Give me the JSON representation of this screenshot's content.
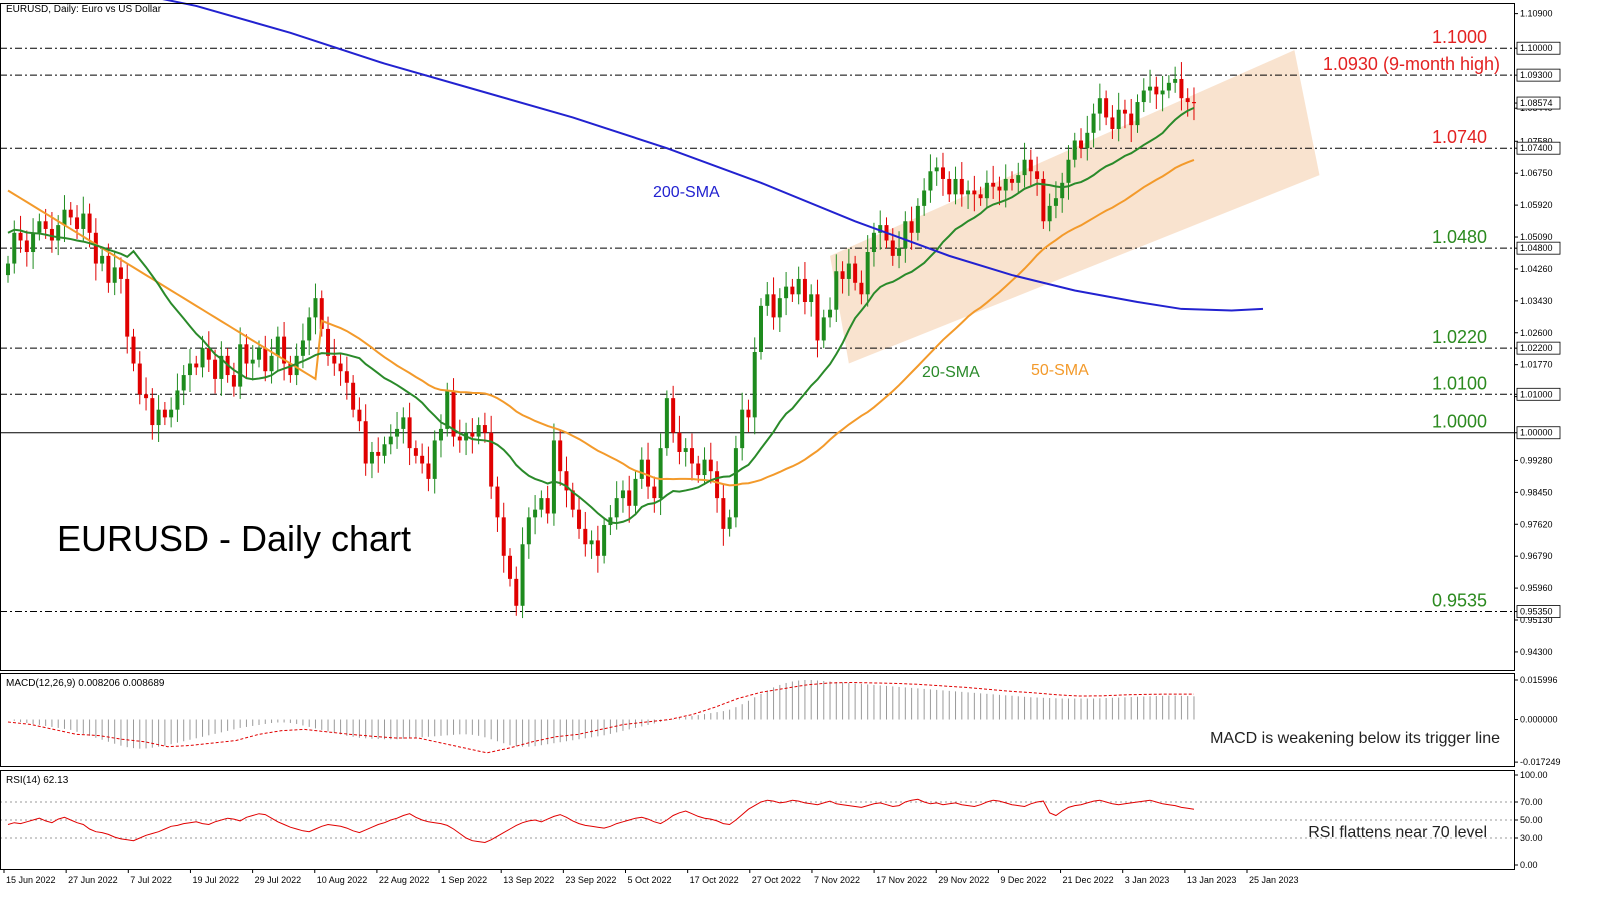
{
  "header": {
    "main_label": "EURUSD, Daily:  Euro vs US Dollar",
    "macd_label": "MACD(12,26,9) 0.008206 0.008689",
    "rsi_label": "RSI(14) 62.13"
  },
  "annotations": {
    "title": "EURUSD - Daily chart",
    "macd_note": "MACD is weakening below its trigger line",
    "rsi_note": "RSI flattens near 70 level",
    "sma200_label": "200-SMA",
    "sma20_label": "20-SMA",
    "sma50_label": "50-SMA"
  },
  "colors": {
    "up_candle": "#1e8b1e",
    "down_candle": "#e00000",
    "sma200": "#2222d0",
    "sma20": "#2a8a2a",
    "sma50": "#f39a2b",
    "channel": "#f7d9bf",
    "level_red": "#e32222",
    "level_green": "#2b8a1f"
  },
  "chart_data": {
    "type": "candlestick",
    "y_range": [
      0.9383,
      1.1115
    ],
    "levels": [
      {
        "value": 1.1,
        "label": "1.1000",
        "color": "red"
      },
      {
        "value": 1.093,
        "label": "1.0930 (9-month high)",
        "color": "red"
      },
      {
        "value": 1.074,
        "label": "1.0740",
        "color": "red"
      },
      {
        "value": 1.048,
        "label": "1.0480",
        "color": "green"
      },
      {
        "value": 1.022,
        "label": "1.0220",
        "color": "green"
      },
      {
        "value": 1.01,
        "label": "1.0100",
        "color": "green"
      },
      {
        "value": 1.0,
        "label": "1.0000",
        "color": "green"
      },
      {
        "value": 0.9535,
        "label": "0.9535",
        "color": "green"
      }
    ],
    "price_ticks": [
      "1.10900",
      "1.10000",
      "1.09300",
      "1.08574",
      "1.08440",
      "1.07580",
      "1.07400",
      "1.06750",
      "1.05920",
      "1.05090",
      "1.04800",
      "1.04260",
      "1.03430",
      "1.02600",
      "1.02200",
      "1.01770",
      "1.01000",
      "1.00940",
      "1.00000",
      "0.99280",
      "0.98450",
      "0.97620",
      "0.96790",
      "0.95960",
      "0.95350",
      "0.95130",
      "0.94300"
    ],
    "price_tags": [
      "1.10000",
      "1.09300",
      "1.08574",
      "1.07400",
      "1.04800",
      "1.02200",
      "1.01000",
      "1.00000",
      "0.95350"
    ],
    "current_price": 1.08574,
    "macd_ticks": [
      "0.015996",
      "0.000000",
      "-0.017249"
    ],
    "rsi_ticks": [
      "100.00",
      "70.00",
      "50.00",
      "30.00",
      "0.00"
    ],
    "x_labels": [
      "15 Jun 2022",
      "27 Jun 2022",
      "7 Jul 2022",
      "19 Jul 2022",
      "29 Jul 2022",
      "10 Aug 2022",
      "22 Aug 2022",
      "1 Sep 2022",
      "13 Sep 2022",
      "23 Sep 2022",
      "5 Oct 2022",
      "17 Oct 2022",
      "27 Oct 2022",
      "7 Nov 2022",
      "17 Nov 2022",
      "29 Nov 2022",
      "9 Dec 2022",
      "21 Dec 2022",
      "3 Jan 2023",
      "13 Jan 2023",
      "25 Jan 2023"
    ],
    "closes": [
      1.044,
      1.052,
      1.05,
      1.047,
      1.052,
      1.055,
      1.053,
      1.05,
      1.054,
      1.058,
      1.056,
      1.053,
      1.057,
      1.052,
      1.044,
      1.046,
      1.039,
      1.043,
      1.04,
      1.025,
      1.018,
      1.01,
      1.009,
      1.002,
      1.006,
      1.004,
      1.006,
      1.011,
      1.015,
      1.018,
      1.017,
      1.022,
      1.019,
      1.014,
      1.02,
      1.015,
      1.012,
      1.023,
      1.018,
      1.019,
      1.022,
      1.016,
      1.02,
      1.025,
      1.018,
      1.015,
      1.02,
      1.024,
      1.03,
      1.035,
      1.027,
      1.02,
      1.018,
      1.016,
      1.013,
      1.006,
      1.003,
      0.992,
      0.995,
      0.994,
      0.997,
      0.999,
      1.001,
      1.004,
      0.996,
      0.994,
      0.992,
      0.988,
      0.998,
      1.001,
      1.011,
      0.999,
      0.998,
      1.0,
      0.999,
      1.002,
      1.0,
      0.986,
      0.978,
      0.968,
      0.962,
      0.955,
      0.971,
      0.978,
      0.98,
      0.983,
      0.979,
      0.998,
      0.99,
      0.985,
      0.98,
      0.975,
      0.971,
      0.972,
      0.968,
      0.976,
      0.978,
      0.983,
      0.985,
      0.981,
      0.988,
      0.993,
      0.986,
      0.983,
      0.996,
      1.009,
      1.0,
      0.995,
      0.996,
      0.992,
      0.989,
      0.993,
      0.99,
      0.983,
      0.975,
      0.978,
      0.996,
      1.006,
      1.004,
      1.021,
      1.033,
      1.036,
      1.03,
      1.035,
      1.038,
      1.036,
      1.04,
      1.034,
      1.036,
      1.024,
      1.03,
      1.032,
      1.042,
      1.04,
      1.044,
      1.039,
      1.036,
      1.047,
      1.052,
      1.054,
      1.05,
      1.046,
      1.048,
      1.055,
      1.052,
      1.059,
      1.063,
      1.068,
      1.069,
      1.066,
      1.062,
      1.066,
      1.062,
      1.063,
      1.062,
      1.061,
      1.065,
      1.064,
      1.063,
      1.066,
      1.065,
      1.067,
      1.071,
      1.068,
      1.066,
      1.055,
      1.059,
      1.061,
      1.065,
      1.071,
      1.076,
      1.074,
      1.078,
      1.083,
      1.087,
      1.082,
      1.079,
      1.084,
      1.083,
      1.08,
      1.086,
      1.089,
      1.09,
      1.088,
      1.089,
      1.091,
      1.092,
      1.087,
      1.086,
      1.0857
    ],
    "sma20_start_index": 0,
    "sma50_start_index": 0,
    "sma200_points": [
      [
        0,
        1.121
      ],
      [
        15,
        1.116
      ],
      [
        30,
        1.111
      ],
      [
        45,
        1.104
      ],
      [
        60,
        1.096
      ],
      [
        75,
        1.089
      ],
      [
        90,
        1.082
      ],
      [
        105,
        1.074
      ],
      [
        120,
        1.065
      ],
      [
        135,
        1.055
      ],
      [
        150,
        1.046
      ],
      [
        160,
        1.041
      ],
      [
        170,
        1.037
      ],
      [
        180,
        1.034
      ],
      [
        187,
        1.0322
      ],
      [
        195,
        1.0318
      ],
      [
        200,
        1.0322
      ]
    ],
    "macd_hist": [
      0.0,
      -0.0005,
      -0.001,
      -0.0014,
      -0.0018,
      -0.0022,
      -0.0026,
      -0.003,
      -0.0034,
      -0.0038,
      -0.0042,
      -0.005,
      -0.0058,
      -0.0066,
      -0.0074,
      -0.0082,
      -0.009,
      -0.0098,
      -0.0106,
      -0.0112,
      -0.0116,
      -0.0118,
      -0.0117,
      -0.0114,
      -0.011,
      -0.0106,
      -0.01,
      -0.0094,
      -0.0088,
      -0.0082,
      -0.0076,
      -0.007,
      -0.0064,
      -0.0058,
      -0.0052,
      -0.0046,
      -0.004,
      -0.0034,
      -0.003,
      -0.0026,
      -0.0022,
      -0.0018,
      -0.0014,
      -0.0012,
      -0.0012,
      -0.0014,
      -0.0018,
      -0.0024,
      -0.003,
      -0.0036,
      -0.0042,
      -0.0048,
      -0.0054,
      -0.006,
      -0.0066,
      -0.007,
      -0.0074,
      -0.0076,
      -0.0078,
      -0.0079,
      -0.008,
      -0.008,
      -0.008,
      -0.0078,
      -0.0076,
      -0.0074,
      -0.0072,
      -0.007,
      -0.0068,
      -0.0066,
      -0.0064,
      -0.0062,
      -0.006,
      -0.006,
      -0.0062,
      -0.0066,
      -0.0072,
      -0.008,
      -0.0088,
      -0.0096,
      -0.0104,
      -0.0108,
      -0.011,
      -0.011,
      -0.0108,
      -0.0104,
      -0.01,
      -0.0096,
      -0.0092,
      -0.0088,
      -0.0084,
      -0.008,
      -0.0076,
      -0.0072,
      -0.0068,
      -0.0064,
      -0.0058,
      -0.0052,
      -0.0046,
      -0.004,
      -0.0034,
      -0.0028,
      -0.0022,
      -0.0016,
      -0.001,
      -0.0004,
      0.0002,
      0.0006,
      0.001,
      0.0014,
      0.0018,
      0.0022,
      0.0026,
      0.003,
      0.0034,
      0.004,
      0.005,
      0.0062,
      0.0076,
      0.009,
      0.0104,
      0.0118,
      0.013,
      0.014,
      0.0148,
      0.0154,
      0.0158,
      0.016,
      0.016,
      0.0158,
      0.0156,
      0.0154,
      0.0152,
      0.015,
      0.0148,
      0.0146,
      0.0144,
      0.0142,
      0.014,
      0.0138,
      0.0136,
      0.0134,
      0.0132,
      0.013,
      0.0128,
      0.0126,
      0.0124,
      0.0122,
      0.012,
      0.0118,
      0.0116,
      0.0114,
      0.0112,
      0.011,
      0.0108,
      0.0106,
      0.0104,
      0.0102,
      0.01,
      0.0098,
      0.0096,
      0.0094,
      0.0092,
      0.009,
      0.0089,
      0.0088,
      0.0087,
      0.0086,
      0.0085,
      0.0085,
      0.0085,
      0.0085,
      0.0085,
      0.0085,
      0.0086,
      0.0087,
      0.0088,
      0.0089,
      0.009,
      0.0091,
      0.0092,
      0.0093,
      0.0094,
      0.0095,
      0.0096,
      0.0097,
      0.0097,
      0.0096,
      0.0095,
      0.0094,
      0.0093,
      0.0092,
      0.0091,
      0.009,
      0.0089,
      0.0088,
      0.0087,
      0.0086,
      0.0085,
      0.0084,
      0.0083,
      0.0082,
      0.0082,
      0.0082
    ],
    "macd_signal": [
      -0.001,
      -0.002,
      -0.004,
      -0.006,
      -0.0065,
      -0.008,
      -0.009,
      -0.011,
      -0.0105,
      -0.0095,
      -0.0085,
      -0.006,
      -0.0045,
      -0.004,
      -0.005,
      -0.006,
      -0.0068,
      -0.0075,
      -0.0075,
      -0.0095,
      -0.0115,
      -0.0135,
      -0.0115,
      -0.009,
      -0.007,
      -0.006,
      -0.004,
      -0.002,
      -0.001,
      0.0,
      0.002,
      0.005,
      0.0085,
      0.011,
      0.0125,
      0.014,
      0.0148,
      0.015,
      0.0148,
      0.0146,
      0.0142,
      0.0136,
      0.013,
      0.0122,
      0.0114,
      0.0108,
      0.01,
      0.0095,
      0.0096,
      0.01,
      0.0102,
      0.0103,
      0.0103
    ],
    "rsi": [
      45,
      47,
      46,
      48,
      50,
      52,
      49,
      47,
      51,
      53,
      50,
      47,
      45,
      40,
      37,
      36,
      34,
      31,
      29,
      28,
      27,
      30,
      33,
      35,
      37,
      40,
      43,
      44,
      46,
      47,
      48,
      46,
      45,
      48,
      50,
      52,
      51,
      49,
      53,
      55,
      57,
      56,
      52,
      48,
      45,
      42,
      40,
      38,
      37,
      40,
      43,
      45,
      44,
      43,
      41,
      38,
      36,
      39,
      42,
      45,
      47,
      50,
      52,
      55,
      57,
      53,
      50,
      48,
      47,
      46,
      44,
      40,
      35,
      30,
      27,
      26,
      25,
      28,
      32,
      36,
      40,
      44,
      47,
      49,
      50,
      48,
      51,
      54,
      56,
      53,
      49,
      46,
      44,
      43,
      42,
      41,
      43,
      46,
      48,
      50,
      52,
      53,
      51,
      48,
      46,
      50,
      55,
      58,
      60,
      57,
      54,
      52,
      51,
      49,
      46,
      45,
      50,
      56,
      62,
      66,
      70,
      72,
      71,
      69,
      70,
      72,
      71,
      69,
      68,
      67,
      69,
      71,
      68,
      67,
      66,
      65,
      64,
      66,
      68,
      69,
      67,
      65,
      66,
      70,
      72,
      73,
      70,
      68,
      69,
      67,
      68,
      69,
      67,
      66,
      65,
      67,
      70,
      72,
      71,
      69,
      67,
      66,
      65,
      68,
      70,
      71,
      58,
      55,
      60,
      64,
      66,
      67,
      69,
      71,
      72,
      70,
      68,
      67,
      68,
      69,
      70,
      71,
      72,
      70,
      68,
      67,
      66,
      64,
      63,
      62
    ]
  }
}
